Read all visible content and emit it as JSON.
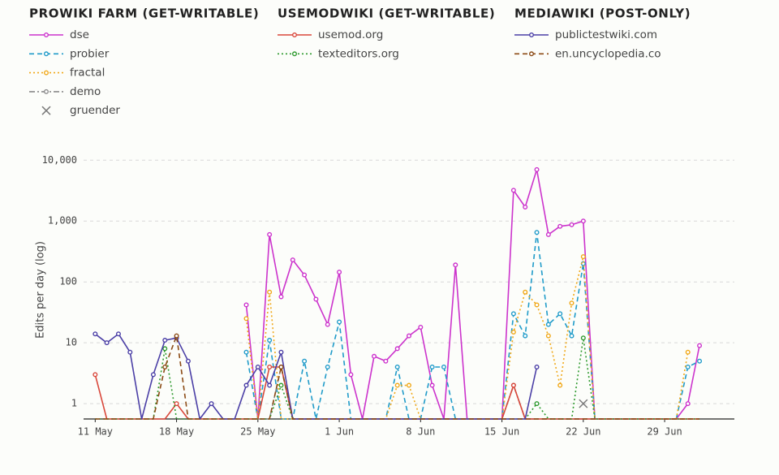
{
  "chart_data": {
    "type": "line",
    "ylabel": "Edits per day (log)",
    "log_y": true,
    "grid": true,
    "ylim": [
      0.56,
      17000
    ],
    "yticks": [
      1,
      10,
      100,
      {
        "value": 1000,
        "label": "1,000"
      },
      {
        "value": 10000,
        "label": "10,000"
      }
    ],
    "xlim": [
      "10 May",
      "5 Jul"
    ],
    "xticks": [
      "11 May",
      "18 May",
      "25 May",
      "1 Jun",
      "8 Jun",
      "15 Jun",
      "22 Jun",
      "29 Jun"
    ],
    "x": [
      "11 May",
      "12 May",
      "13 May",
      "14 May",
      "15 May",
      "16 May",
      "17 May",
      "18 May",
      "19 May",
      "20 May",
      "21 May",
      "22 May",
      "23 May",
      "24 May",
      "25 May",
      "26 May",
      "27 May",
      "28 May",
      "29 May",
      "30 May",
      "31 May",
      "1 Jun",
      "2 Jun",
      "3 Jun",
      "4 Jun",
      "5 Jun",
      "6 Jun",
      "7 Jun",
      "8 Jun",
      "9 Jun",
      "10 Jun",
      "11 Jun",
      "12 Jun",
      "13 Jun",
      "14 Jun",
      "15 Jun",
      "16 Jun",
      "17 Jun",
      "18 Jun",
      "19 Jun",
      "20 Jun",
      "21 Jun",
      "22 Jun",
      "23 Jun",
      "24 Jun",
      "25 Jun",
      "26 Jun",
      "27 Jun",
      "28 Jun",
      "29 Jun",
      "30 Jun",
      "1 Jul",
      "2 Jul"
    ],
    "groups": [
      {
        "title": "PROWIKI FARM (GET-WRITABLE)",
        "series": [
          {
            "name": "dse",
            "color": "#cc33cc",
            "dash": "solid",
            "marker": "circle",
            "values": [
              null,
              null,
              null,
              null,
              null,
              null,
              null,
              null,
              null,
              null,
              null,
              null,
              null,
              42,
              0,
              600,
              57,
              230,
              130,
              52,
              20,
              145,
              3,
              0,
              6,
              5,
              8,
              13,
              18,
              2,
              0,
              190,
              0,
              0,
              0,
              0,
              3200,
              1700,
              7000,
              600,
              820,
              870,
              1000,
              0,
              0,
              0,
              0,
              0,
              0,
              0,
              0,
              1,
              9
            ]
          },
          {
            "name": "probier",
            "color": "#1f9bc9",
            "dash": "dash",
            "marker": "circle",
            "values": [
              null,
              null,
              null,
              null,
              null,
              null,
              null,
              null,
              null,
              null,
              null,
              null,
              null,
              7,
              0,
              11,
              0,
              0,
              5,
              0,
              4,
              22,
              0,
              0,
              0,
              0,
              4,
              0,
              0,
              4,
              4,
              0,
              0,
              0,
              0,
              0,
              30,
              13,
              650,
              20,
              30,
              13,
              200,
              0,
              0,
              0,
              0,
              0,
              0,
              0,
              0,
              4,
              5
            ]
          },
          {
            "name": "fractal",
            "color": "#f0a818",
            "dash": "dot",
            "marker": "circle",
            "values": [
              null,
              null,
              null,
              null,
              null,
              null,
              null,
              null,
              null,
              null,
              null,
              null,
              null,
              25,
              0,
              68,
              0,
              0,
              0,
              0,
              0,
              0,
              0,
              0,
              0,
              0,
              2,
              2,
              0,
              0,
              0,
              0,
              0,
              0,
              0,
              0,
              15,
              68,
              42,
              13,
              2,
              45,
              260,
              0,
              0,
              0,
              0,
              0,
              0,
              0,
              0,
              7,
              null
            ]
          },
          {
            "name": "demo",
            "color": "#8a8a8a",
            "dash": "dashdot",
            "marker": "circle",
            "values": [
              null,
              null,
              null,
              null,
              null,
              null,
              null,
              null,
              null,
              null,
              null,
              null,
              null,
              0,
              0,
              0,
              4,
              0,
              0,
              0,
              0,
              0,
              0,
              0,
              0,
              0,
              0,
              0,
              0,
              0,
              0,
              0,
              0,
              0,
              0,
              0,
              2,
              0,
              0,
              0,
              0,
              0,
              0,
              0,
              0,
              0,
              0,
              0,
              0,
              0,
              0,
              0,
              0
            ]
          },
          {
            "name": "gruender",
            "color": "#7a7a7a",
            "dash": "none",
            "marker": "x",
            "values": [
              null,
              null,
              null,
              null,
              null,
              null,
              null,
              null,
              null,
              null,
              null,
              null,
              null,
              null,
              null,
              null,
              null,
              null,
              null,
              null,
              null,
              null,
              null,
              null,
              null,
              null,
              null,
              null,
              null,
              null,
              null,
              null,
              null,
              null,
              null,
              null,
              null,
              null,
              null,
              null,
              null,
              null,
              1,
              null,
              null,
              null,
              null,
              null,
              null,
              null,
              null,
              null,
              null
            ]
          }
        ]
      },
      {
        "title": "USEMODWIKI (GET-WRITABLE)",
        "series": [
          {
            "name": "usemod.org",
            "color": "#d9473a",
            "dash": "solid",
            "marker": "circle",
            "values": [
              3,
              0,
              0,
              0,
              0,
              0,
              0,
              1,
              0,
              0,
              0,
              0,
              0,
              0,
              0,
              4,
              4,
              0,
              0,
              0,
              0,
              0,
              0,
              0,
              0,
              0,
              0,
              0,
              0,
              0,
              0,
              0,
              0,
              0,
              0,
              0,
              2,
              0,
              0,
              0,
              0,
              0,
              0,
              0,
              0,
              0,
              0,
              0,
              0,
              0,
              0,
              0,
              0
            ]
          },
          {
            "name": "texteditors.org",
            "color": "#2e9a2e",
            "dash": "dot",
            "marker": "circle",
            "values": [
              0,
              0,
              0,
              0,
              0,
              0,
              8,
              0,
              0,
              0,
              0,
              0,
              0,
              0,
              0,
              0,
              2,
              0,
              0,
              0,
              0,
              0,
              0,
              0,
              0,
              0,
              0,
              0,
              0,
              0,
              0,
              0,
              0,
              0,
              0,
              0,
              0,
              0,
              1,
              0,
              0,
              0,
              12,
              0,
              0,
              0,
              0,
              0,
              0,
              0,
              0,
              0,
              0
            ]
          }
        ]
      },
      {
        "title": "MEDIAWIKI (POST-ONLY)",
        "series": [
          {
            "name": "publictestwiki.com",
            "color": "#4b3fa6",
            "dash": "solid",
            "marker": "circle",
            "values": [
              14,
              10,
              14,
              7,
              0,
              3,
              11,
              12,
              5,
              0,
              1,
              0,
              0,
              2,
              4,
              2,
              7,
              0,
              0,
              0,
              0,
              0,
              0,
              0,
              0,
              0,
              0,
              0,
              0,
              0,
              0,
              0,
              0,
              0,
              0,
              0,
              0,
              0,
              4,
              null,
              null,
              null,
              null,
              null,
              null,
              null,
              null,
              null,
              null,
              null,
              null,
              null,
              null
            ]
          },
          {
            "name": "en.uncyclopedia.co",
            "color": "#8b4a14",
            "dash": "dash",
            "marker": "circle",
            "values": [
              0,
              0,
              0,
              0,
              0,
              0,
              4,
              13,
              0,
              0,
              0,
              0,
              0,
              0,
              0,
              0,
              4,
              0,
              0,
              0,
              0,
              0,
              0,
              0,
              0,
              0,
              0,
              0,
              0,
              0,
              0,
              0,
              0,
              0,
              0,
              0,
              0,
              0,
              0,
              0,
              0,
              0,
              0,
              0,
              0,
              0,
              0,
              0,
              0,
              0,
              0,
              0,
              0
            ]
          }
        ]
      }
    ]
  }
}
